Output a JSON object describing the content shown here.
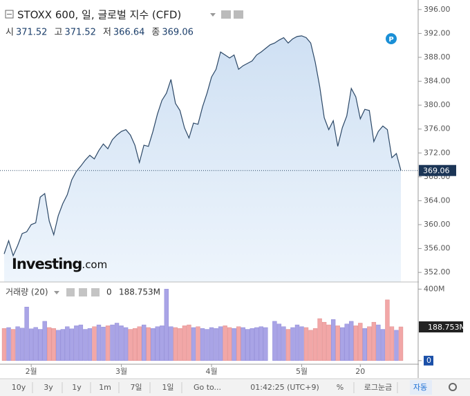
{
  "header": {
    "title": "STOXX 600, 일, 글로벌 지수 (CFD)",
    "ohlc": [
      {
        "label": "시",
        "value": 371.52
      },
      {
        "label": "고",
        "value": 371.52
      },
      {
        "label": "저",
        "value": 366.64
      },
      {
        "label": "종",
        "value": 369.06
      }
    ]
  },
  "watermark": {
    "brand": "Investing",
    "suffix": ".com"
  },
  "chart_data": [
    {
      "type": "area",
      "color": "#2b4766",
      "fill": "#dce9f6",
      "categories": [
        null,
        null,
        null,
        null,
        null,
        null,
        "2월",
        null,
        null,
        null,
        null,
        null,
        null,
        null,
        null,
        null,
        null,
        null,
        null,
        null,
        null,
        null,
        null,
        null,
        null,
        null,
        "3월",
        null,
        null,
        null,
        null,
        null,
        null,
        null,
        null,
        null,
        null,
        null,
        null,
        null,
        null,
        null,
        null,
        null,
        null,
        null,
        "4월",
        null,
        null,
        null,
        null,
        null,
        null,
        null,
        null,
        null,
        null,
        null,
        null,
        null,
        null,
        null,
        null,
        null,
        null,
        null,
        "5월",
        null,
        null,
        null,
        null,
        null,
        null,
        null,
        null,
        null,
        null,
        null,
        null,
        "20",
        null,
        null,
        null,
        null,
        null,
        null,
        null,
        null,
        null
      ],
      "values": [
        355.1,
        357.3,
        354.8,
        356.5,
        358.5,
        358.8,
        360.0,
        360.3,
        364.6,
        365.2,
        360.6,
        358.3,
        361.5,
        363.5,
        365.0,
        367.5,
        368.9,
        369.8,
        370.8,
        371.6,
        371.0,
        372.4,
        373.5,
        372.7,
        374.2,
        375.0,
        375.6,
        375.9,
        375.0,
        373.3,
        370.4,
        373.3,
        373.1,
        375.6,
        378.5,
        380.8,
        382.0,
        384.3,
        380.3,
        379.1,
        376.2,
        374.5,
        377.0,
        376.8,
        379.7,
        382.0,
        384.7,
        386.0,
        388.9,
        388.4,
        387.9,
        388.4,
        386.0,
        386.6,
        387.0,
        387.4,
        388.4,
        388.9,
        389.5,
        390.1,
        390.4,
        390.9,
        391.3,
        390.4,
        391.1,
        391.5,
        391.6,
        391.3,
        390.4,
        387.2,
        383.1,
        377.9,
        375.9,
        377.4,
        373.1,
        376.2,
        378.2,
        382.8,
        381.4,
        377.7,
        379.3,
        379.1,
        373.9,
        375.6,
        376.5,
        375.9,
        371.2,
        371.9,
        369.06
      ],
      "ylim": [
        350.4,
        397.6
      ],
      "yticks": [
        {
          "value": 352,
          "label": "352.00"
        },
        {
          "value": 356,
          "label": "356.00"
        },
        {
          "value": 360,
          "label": "360.00"
        },
        {
          "value": 364,
          "label": "364.00"
        },
        {
          "value": 368,
          "label": "368.00"
        },
        {
          "value": 372,
          "label": "372.00"
        },
        {
          "value": 376,
          "label": "376.00"
        },
        {
          "value": 380,
          "label": "380.00"
        },
        {
          "value": 384,
          "label": "384.00"
        },
        {
          "value": 388,
          "label": "388.00"
        },
        {
          "value": 392,
          "label": "392.00"
        },
        {
          "value": 396,
          "label": "396.00"
        }
      ]
    },
    {
      "type": "bar",
      "title": "거래량 (20)",
      "legend_value": 0,
      "up_color": "#a9a4e6",
      "down_color": "#f2a7a7",
      "values": [
        180,
        185,
        175,
        190,
        182,
        300,
        178,
        186,
        175,
        220,
        185,
        180,
        170,
        175,
        190,
        178,
        195,
        200,
        175,
        180,
        190,
        200,
        188,
        195,
        200,
        210,
        195,
        185,
        175,
        180,
        190,
        200,
        185,
        180,
        190,
        195,
        400,
        190,
        185,
        180,
        195,
        200,
        185,
        190,
        180,
        175,
        185,
        180,
        190,
        195,
        185,
        180,
        190,
        185,
        175,
        180,
        185,
        190,
        185,
        null,
        220,
        205,
        190,
        175,
        185,
        200,
        190,
        185,
        170,
        180,
        235,
        215,
        200,
        230,
        195,
        185,
        205,
        220,
        195,
        210,
        180,
        190,
        215,
        200,
        175,
        340,
        190,
        170,
        188.753
      ],
      "current": {
        "value": 188.753,
        "label": "188.753M"
      },
      "ylim": [
        -20,
        440
      ],
      "yticks": [
        0,
        {
          "value": 400,
          "label": "400M"
        }
      ]
    }
  ],
  "toolbar": [
    "10y",
    "3y",
    "1y",
    "1m",
    "7일",
    "1일",
    "Go to...",
    "01:42:25 (UTC+9)",
    "%",
    "로그눈금",
    "자동"
  ]
}
